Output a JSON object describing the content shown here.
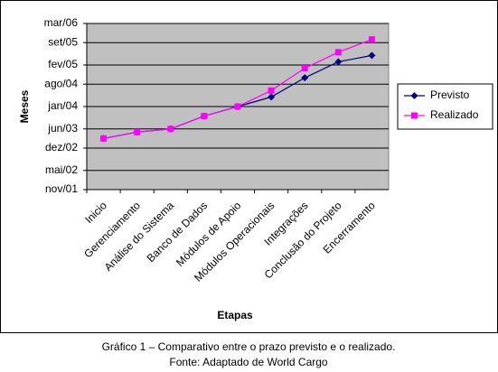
{
  "chart_data": {
    "type": "line",
    "x_label": "Etapas",
    "y_label": "Meses",
    "categories": [
      "Inicio",
      "Gerenciamento",
      "Análise do Sistema",
      "Banco de Dados",
      "Módulos de Apoio",
      "Módulos Operacionais",
      "Integrações",
      "Conclusão do Projeto",
      "Encerramento"
    ],
    "series": [
      {
        "name": "Previsto",
        "color": "#000080",
        "marker": "diamond",
        "values": [
          "2003-03",
          "2003-05",
          "2003-06",
          "2003-10",
          "2004-01",
          "2004-04",
          "2004-10",
          "2005-03",
          "2005-05"
        ]
      },
      {
        "name": "Realizado",
        "color": "#ff00ff",
        "marker": "square",
        "values": [
          "2003-03",
          "2003-05",
          "2003-06",
          "2003-10",
          "2004-01",
          "2004-06",
          "2005-01",
          "2005-06",
          "2005-10"
        ]
      }
    ],
    "ylim": [
      "2001-11",
      "2006-03"
    ],
    "yticks": [
      {
        "value": "2001-11",
        "label": "nov/01"
      },
      {
        "value": "2002-05",
        "label": "mai/02"
      },
      {
        "value": "2002-12",
        "label": "dez/02"
      },
      {
        "value": "2003-06",
        "label": "jun/03"
      },
      {
        "value": "2004-01",
        "label": "jan/04"
      },
      {
        "value": "2004-08",
        "label": "ago/04"
      },
      {
        "value": "2005-02",
        "label": "fev/05"
      },
      {
        "value": "2005-09",
        "label": "set/05"
      },
      {
        "value": "2006-03",
        "label": "mar/06"
      }
    ],
    "grid": true,
    "legend": "right"
  },
  "caption": {
    "line1": "Gráfico 1 – Comparativo entre o prazo previsto e o realizado.",
    "line2": "Fonte: Adaptado de World Cargo"
  }
}
